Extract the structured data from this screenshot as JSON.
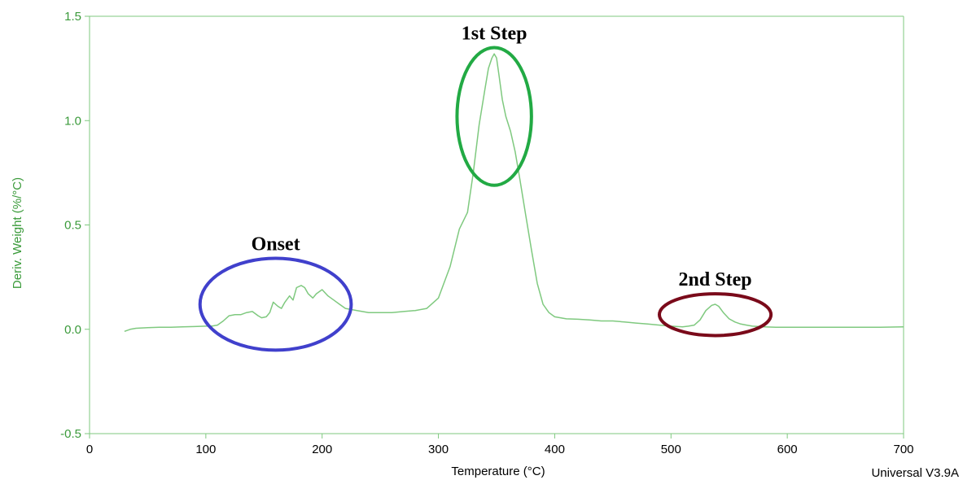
{
  "chart_data": {
    "type": "line",
    "xlabel": "Temperature (°C)",
    "ylabel": "Deriv. Weight (%/°C)",
    "xlim": [
      0,
      700
    ],
    "ylim": [
      -0.5,
      1.5
    ],
    "x_ticks": [
      0,
      100,
      200,
      300,
      400,
      500,
      600,
      700
    ],
    "y_ticks": [
      -0.5,
      0.0,
      0.5,
      1.0,
      1.5
    ],
    "y_tick_labels": [
      "-0.5",
      "0.0",
      "0.5",
      "1.0",
      "1.5"
    ],
    "grid": false,
    "series": [
      {
        "color": "#7fc97f",
        "x": [
          30,
          35,
          40,
          50,
          60,
          70,
          80,
          90,
          100,
          105,
          110,
          115,
          120,
          125,
          130,
          135,
          140,
          145,
          148,
          152,
          155,
          158,
          162,
          165,
          168,
          172,
          175,
          178,
          182,
          185,
          188,
          192,
          195,
          200,
          205,
          210,
          215,
          220,
          230,
          240,
          250,
          260,
          270,
          280,
          290,
          300,
          310,
          318,
          325,
          330,
          335,
          340,
          343,
          346,
          348,
          350,
          352,
          355,
          358,
          362,
          366,
          370,
          375,
          380,
          385,
          390,
          395,
          400,
          410,
          420,
          430,
          440,
          450,
          460,
          470,
          480,
          490,
          500,
          510,
          515,
          520,
          525,
          530,
          535,
          538,
          541,
          545,
          550,
          555,
          560,
          565,
          570,
          580,
          590,
          600,
          620,
          640,
          660,
          680,
          700
        ],
        "y": [
          -0.01,
          0.0,
          0.005,
          0.008,
          0.01,
          0.01,
          0.012,
          0.013,
          0.015,
          0.015,
          0.02,
          0.04,
          0.065,
          0.07,
          0.07,
          0.08,
          0.085,
          0.065,
          0.055,
          0.06,
          0.08,
          0.13,
          0.11,
          0.1,
          0.13,
          0.16,
          0.14,
          0.2,
          0.21,
          0.2,
          0.17,
          0.15,
          0.17,
          0.19,
          0.16,
          0.14,
          0.12,
          0.1,
          0.09,
          0.08,
          0.08,
          0.08,
          0.085,
          0.09,
          0.1,
          0.15,
          0.3,
          0.48,
          0.56,
          0.75,
          0.98,
          1.15,
          1.25,
          1.3,
          1.32,
          1.3,
          1.22,
          1.1,
          1.02,
          0.95,
          0.85,
          0.72,
          0.55,
          0.38,
          0.22,
          0.12,
          0.08,
          0.06,
          0.05,
          0.048,
          0.045,
          0.04,
          0.04,
          0.035,
          0.03,
          0.025,
          0.02,
          0.015,
          0.012,
          0.015,
          0.02,
          0.045,
          0.09,
          0.115,
          0.12,
          0.11,
          0.08,
          0.05,
          0.035,
          0.025,
          0.02,
          0.015,
          0.012,
          0.01,
          0.01,
          0.01,
          0.01,
          0.01,
          0.01,
          0.012
        ]
      }
    ],
    "annotations": [
      {
        "text": "Onset",
        "x": 160,
        "y": 0.12,
        "ellipse_rx_data": 65,
        "ellipse_ry_data": 0.22,
        "color": "#4040cc"
      },
      {
        "text": "1st Step",
        "x": 348,
        "y": 1.02,
        "ellipse_rx_data": 32,
        "ellipse_ry_data": 0.33,
        "color": "#22aa44"
      },
      {
        "text": "2nd Step",
        "x": 538,
        "y": 0.07,
        "ellipse_rx_data": 48,
        "ellipse_ry_data": 0.1,
        "color": "#7a0a1a"
      }
    ]
  },
  "colors": {
    "axis": "#7fc97f",
    "tick_label_y": "#3a9a3a",
    "ylabel": "#3a9a3a"
  },
  "footer": {
    "version": "Universal V3.9A"
  }
}
